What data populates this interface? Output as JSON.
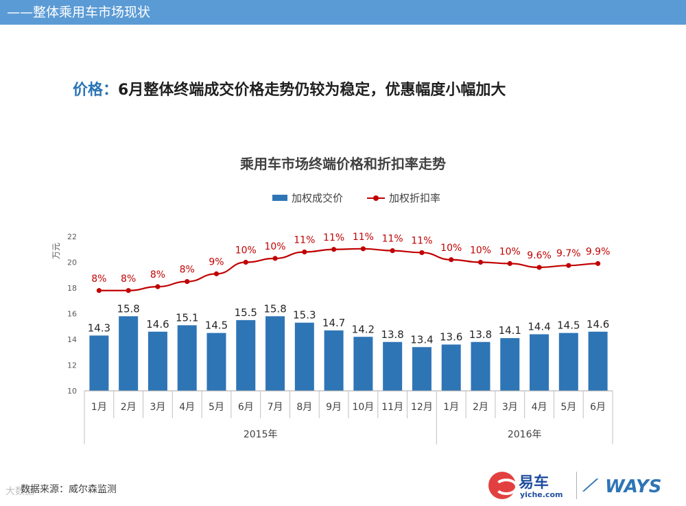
{
  "header": {
    "section_title": "——整体乘用车市场现状"
  },
  "headline": {
    "label": "价格：",
    "text": "6月整体终端成交价格走势仍较为稳定，优惠幅度小幅加大"
  },
  "chart_data": {
    "type": "bar+line",
    "title": "乘用车市场终端价格和折扣率走势",
    "ylabel": "万元",
    "ylim": [
      10,
      22
    ],
    "yticks": [
      "10",
      "12",
      "14",
      "16",
      "18",
      "20",
      "22"
    ],
    "categories": [
      "1月",
      "2月",
      "3月",
      "4月",
      "5月",
      "6月",
      "7月",
      "8月",
      "9月",
      "10月",
      "11月",
      "12月",
      "1月",
      "2月",
      "3月",
      "4月",
      "5月",
      "6月"
    ],
    "year_groups": [
      {
        "label": "2015年",
        "count": 12
      },
      {
        "label": "2016年",
        "count": 6
      }
    ],
    "series": [
      {
        "name": "加权成交价",
        "type": "bar",
        "color": "#2e75b6",
        "values": [
          14.3,
          15.8,
          14.6,
          15.1,
          14.5,
          15.5,
          15.8,
          15.3,
          14.7,
          14.2,
          13.8,
          13.4,
          13.6,
          13.8,
          14.1,
          14.4,
          14.5,
          14.6
        ],
        "labels": [
          "14.3",
          "15.8",
          "14.6",
          "15.1",
          "14.5",
          "15.5",
          "15.8",
          "15.3",
          "14.7",
          "14.2",
          "13.8",
          "13.4",
          "13.6",
          "13.8",
          "14.1",
          "14.4",
          "14.5",
          "14.6"
        ]
      },
      {
        "name": "加权折扣率",
        "type": "line",
        "color": "#c00000",
        "plot_values": [
          17.8,
          17.8,
          18.1,
          18.5,
          19.1,
          20.0,
          20.3,
          20.8,
          21.0,
          21.05,
          20.9,
          20.75,
          20.2,
          20.0,
          19.9,
          19.6,
          19.75,
          19.9
        ],
        "labels": [
          "8%",
          "8%",
          "8%",
          "8%",
          "9%",
          "10%",
          "10%",
          "11%",
          "11%",
          "11%",
          "11%",
          "11%",
          "10%",
          "10%",
          "10%",
          "9.6%",
          "9.7%",
          "9.9%"
        ]
      }
    ]
  },
  "footer": {
    "source": "数据来源：威尔森监测",
    "watermark": "大数据"
  },
  "logos": {
    "yiche_cn": "易车",
    "yiche_en": "yiche.com",
    "ways": "WAYS"
  }
}
